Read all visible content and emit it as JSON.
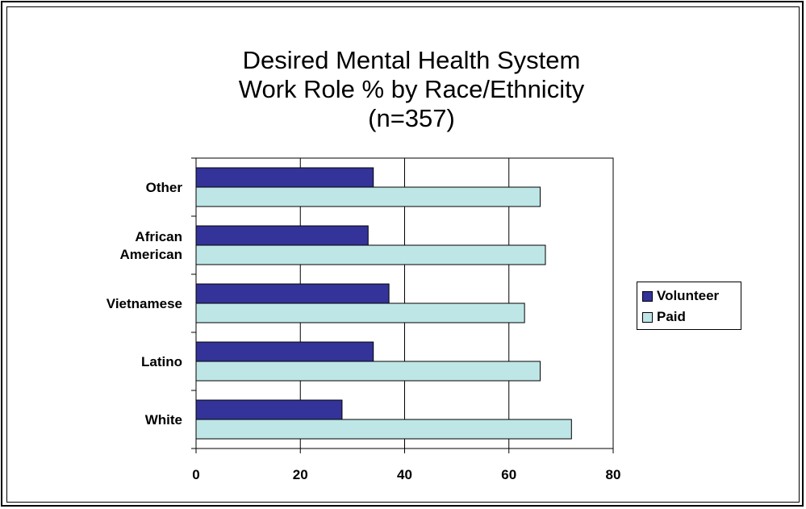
{
  "colors": {
    "volunteer": "#333399",
    "paid": "#BFE6E6"
  },
  "chart_data": {
    "type": "bar",
    "orientation": "horizontal",
    "title_lines": [
      "Desired Mental Health System",
      "Work Role % by Race/Ethnicity",
      "(n=357)"
    ],
    "categories": [
      "Other",
      "African American",
      "Vietnamese",
      "Latino",
      "White"
    ],
    "category_label_lines": [
      [
        "Other"
      ],
      [
        "African",
        "American"
      ],
      [
        "Vietnamese"
      ],
      [
        "Latino"
      ],
      [
        "White"
      ]
    ],
    "series": [
      {
        "name": "Volunteer",
        "values": [
          34,
          33,
          37,
          34,
          28
        ]
      },
      {
        "name": "Paid",
        "values": [
          66,
          67,
          63,
          66,
          72
        ]
      }
    ],
    "xlim": [
      0,
      80
    ],
    "xticks": [
      0,
      20,
      40,
      60,
      80
    ],
    "xlabel": "",
    "ylabel": "",
    "grid": "vertical",
    "legend": "right"
  }
}
